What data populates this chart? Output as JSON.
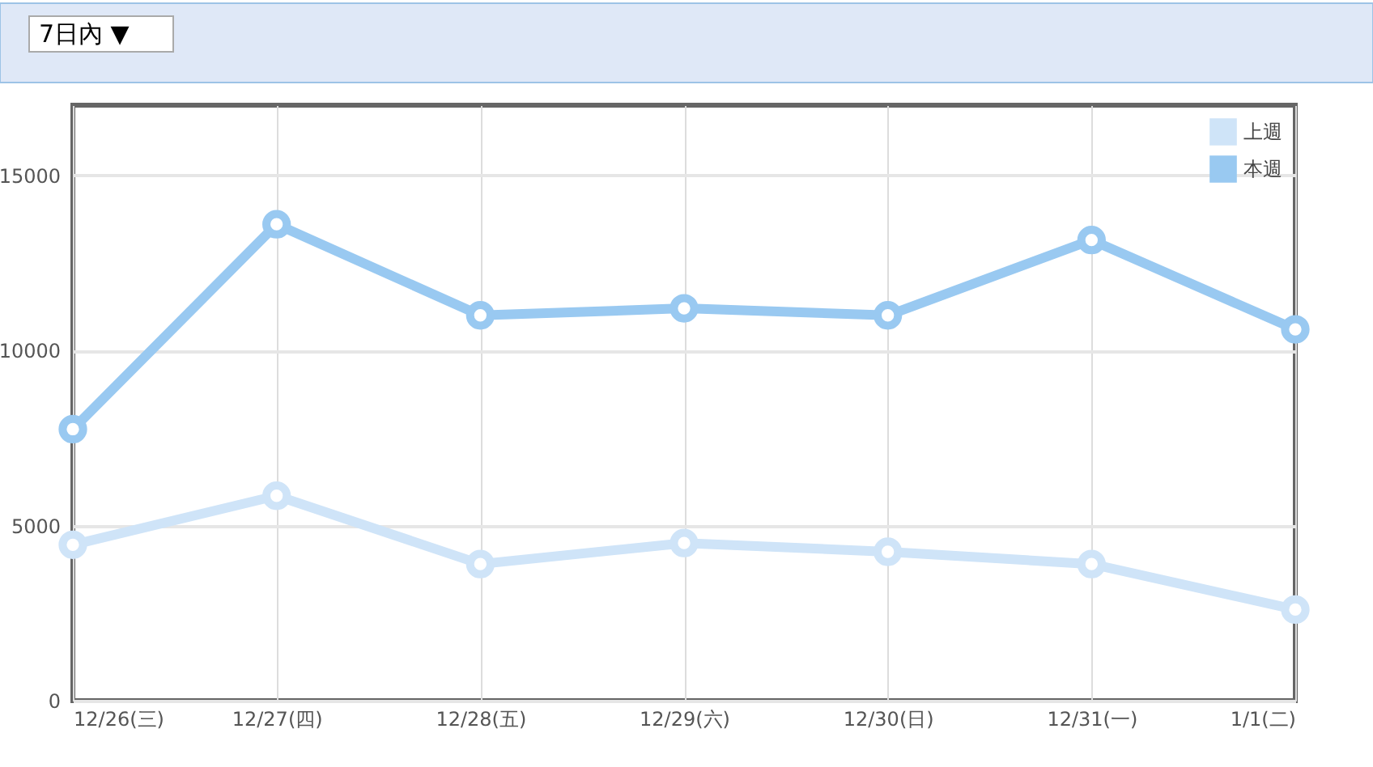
{
  "chart_data": {
    "type": "line",
    "categories": [
      "12/26(三)",
      "12/27(四)",
      "12/28(五)",
      "12/29(六)",
      "12/30(日)",
      "12/31(一)",
      "1/1(二)"
    ],
    "series": [
      {
        "name": "上週",
        "color": "#cfe4f8",
        "values": [
          4450,
          5850,
          3900,
          4500,
          4250,
          3900,
          2600
        ]
      },
      {
        "name": "本週",
        "color": "#99c9f1",
        "values": [
          7750,
          13600,
          11000,
          11200,
          11000,
          13150,
          10600
        ]
      }
    ],
    "ylim": [
      0,
      17000
    ],
    "yticks": [
      0,
      5000,
      10000,
      15000
    ],
    "grid": true,
    "legend": "top right",
    "marker": "circle",
    "line_style": "solid",
    "annotations": [
      "7日內 ▼"
    ]
  }
}
